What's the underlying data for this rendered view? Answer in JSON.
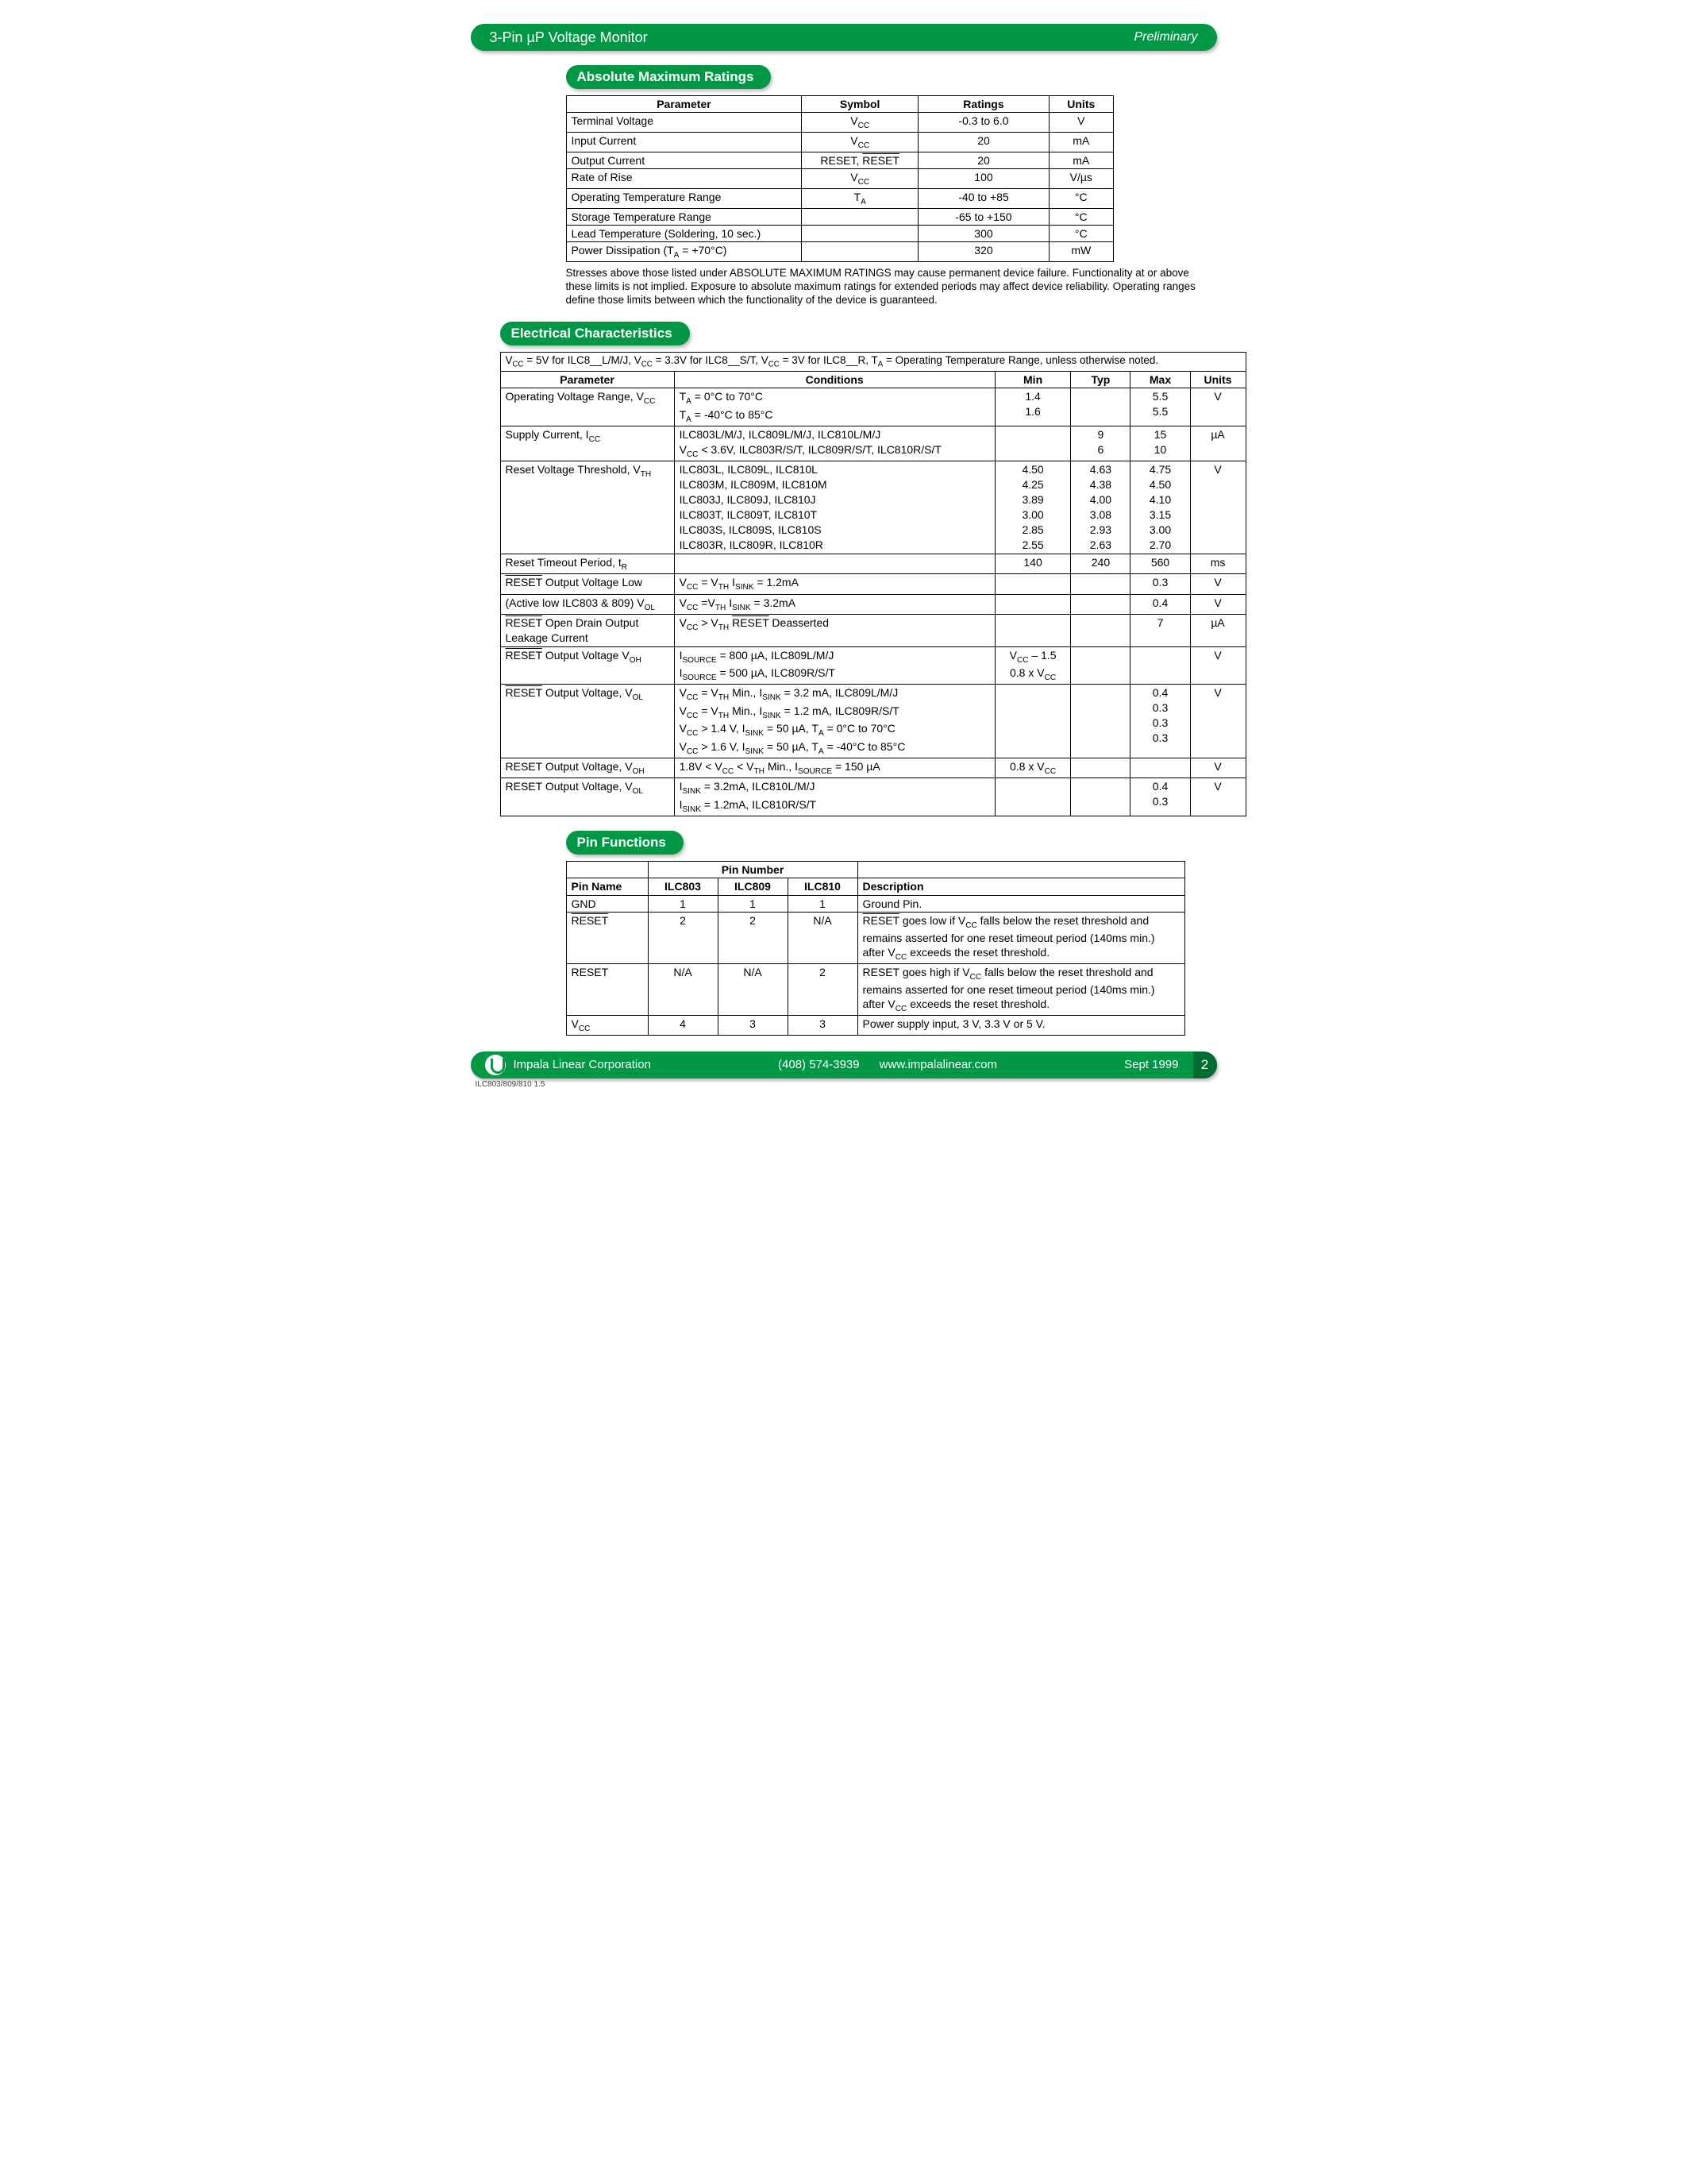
{
  "colors": {
    "brand": "#009844",
    "brand_dark": "#006d30",
    "shadow": "#bdbdbd",
    "text": "#000000",
    "bg": "#ffffff"
  },
  "header": {
    "title": "3-Pin µP Voltage Monitor",
    "right": "Preliminary"
  },
  "sections": {
    "amr": "Absolute Maximum Ratings",
    "ec": "Electrical Characteristics",
    "pf": "Pin Functions"
  },
  "amr": {
    "headers": [
      "Parameter",
      "Symbol",
      "Ratings",
      "Units"
    ],
    "rows": [
      {
        "p": "Terminal Voltage",
        "s": "V_CC",
        "r": "-0.3 to 6.0",
        "u": "V"
      },
      {
        "p": "Input Current",
        "s": "V_CC",
        "r": "20",
        "u": "mA"
      },
      {
        "p": "Output Current",
        "s": "RESET_COMBO",
        "r": "20",
        "u": "mA"
      },
      {
        "p": "Rate of Rise",
        "s": "V_CC",
        "r": "100",
        "u": "V/µs"
      },
      {
        "p": "Operating Temperature Range",
        "s": "T_A",
        "r": "-40 to +85",
        "u": "°C"
      },
      {
        "p": "Storage Temperature Range",
        "s": "",
        "r": "-65 to +150",
        "u": "°C"
      },
      {
        "p": "Lead Temperature (Soldering, 10 sec.)",
        "s": "",
        "r": "300",
        "u": "°C"
      },
      {
        "p": "Power Dissipation (T_A = +70°C)",
        "s": "",
        "r": "320",
        "u": "mW"
      }
    ],
    "note": "Stresses above those listed under ABSOLUTE MAXIMUM RATINGS may cause permanent device failure. Functionality at or above these limits is not implied. Exposure to absolute maximum ratings for extended periods may affect device reliability. Operating ranges define those limits between which the functionality of the device is guaranteed."
  },
  "ec": {
    "cond_header": "V_CC = 5V for ILC8__L/M/J, V_CC = 3.3V for ILC8__S/T, V_CC = 3V for ILC8__R, T_A = Operating Temperature Range, unless otherwise noted.",
    "headers": [
      "Parameter",
      "Conditions",
      "Min",
      "Typ",
      "Max",
      "Units"
    ],
    "rows": [
      {
        "p": "Operating Voltage Range, V_CC",
        "c": [
          "T_A = 0°C to 70°C",
          "T_A = -40°C to 85°C"
        ],
        "min": [
          "1.4",
          "1.6"
        ],
        "typ": [
          "",
          ""
        ],
        "max": [
          "5.5",
          "5.5"
        ],
        "u": "V"
      },
      {
        "p": "Supply Current, I_CC",
        "c": [
          "ILC803L/M/J, ILC809L/M/J, ILC810L/M/J",
          "V_CC < 3.6V, ILC803R/S/T, ILC809R/S/T, ILC810R/S/T"
        ],
        "min": [
          "",
          ""
        ],
        "typ": [
          "9",
          "6"
        ],
        "max": [
          "15",
          "10"
        ],
        "u": "µA"
      },
      {
        "p": "Reset Voltage Threshold, V_TH",
        "c": [
          "ILC803L, ILC809L, ILC810L",
          "ILC803M, ILC809M, ILC810M",
          "ILC803J, ILC809J, ILC810J",
          "ILC803T, ILC809T, ILC810T",
          "ILC803S, ILC809S, ILC810S",
          "ILC803R, ILC809R, ILC810R"
        ],
        "min": [
          "4.50",
          "4.25",
          "3.89",
          "3.00",
          "2.85",
          "2.55"
        ],
        "typ": [
          "4.63",
          "4.38",
          "4.00",
          "3.08",
          "2.93",
          "2.63"
        ],
        "max": [
          "4.75",
          "4.50",
          "4.10",
          "3.15",
          "3.00",
          "2.70"
        ],
        "u": "V"
      },
      {
        "p": "Reset Timeout Period, t_R",
        "c": [
          ""
        ],
        "min": [
          "140"
        ],
        "typ": [
          "240"
        ],
        "max": [
          "560"
        ],
        "u": "ms"
      },
      {
        "p": "RESETBAR Output Voltage Low",
        "c": [
          "V_CC = V_TH     I_SINK = 1.2mA"
        ],
        "min": [
          ""
        ],
        "typ": [
          ""
        ],
        "max": [
          "0.3"
        ],
        "u": "V"
      },
      {
        "p": "(Active low ILC803 & 809) V_OL",
        "c": [
          "V_CC =V_TH     I_SINK = 3.2mA"
        ],
        "min": [
          ""
        ],
        "typ": [
          ""
        ],
        "max": [
          "0.4"
        ],
        "u": "V"
      },
      {
        "p": "RESETBAR Open Drain Output Leakage Current",
        "c": [
          "V_CC > V_TH RESETBAR Deasserted"
        ],
        "min": [
          ""
        ],
        "typ": [
          ""
        ],
        "max": [
          "7"
        ],
        "u": "µA"
      },
      {
        "p": "RESETBAR Output Voltage V_OH",
        "c": [
          "I_SOURCE = 800 µA, ILC809L/M/J",
          "I_SOURCE = 500 µA, ILC809R/S/T"
        ],
        "min": [
          "V_CC – 1.5",
          "0.8 x V_CC"
        ],
        "typ": [
          "",
          ""
        ],
        "max": [
          "",
          ""
        ],
        "u": "V"
      },
      {
        "p": "RESETBAR Output Voltage, V_OL",
        "c": [
          "V_CC = V_TH Min., I_SINK = 3.2 mA, ILC809L/M/J",
          "V_CC = V_TH Min., I_SINK = 1.2 mA, ILC809R/S/T",
          "V_CC > 1.4 V, I_SINK = 50 µA, T_A = 0°C to 70°C",
          "V_CC > 1.6 V, I_SINK = 50 µA, T_A = -40°C to 85°C"
        ],
        "min": [
          "",
          "",
          "",
          ""
        ],
        "typ": [
          "",
          "",
          "",
          ""
        ],
        "max": [
          "0.4",
          "0.3",
          "0.3",
          "0.3"
        ],
        "u": "V"
      },
      {
        "p": "RESET Output Voltage, V_OH",
        "c": [
          "1.8V < V_CC < V_TH Min., I_SOURCE = 150 µA"
        ],
        "min": [
          "0.8 x V_CC"
        ],
        "typ": [
          ""
        ],
        "max": [
          ""
        ],
        "u": "V"
      },
      {
        "p": "RESET Output Voltage, V_OL",
        "c": [
          "I_SINK = 3.2mA, ILC810L/M/J",
          "I_SINK = 1.2mA, ILC810R/S/T"
        ],
        "min": [
          "",
          ""
        ],
        "typ": [
          "",
          ""
        ],
        "max": [
          "0.4",
          "0.3"
        ],
        "u": "V"
      }
    ]
  },
  "pf": {
    "group_header": "Pin Number",
    "headers": [
      "Pin Name",
      "ILC803",
      "ILC809",
      "ILC810",
      "Description"
    ],
    "rows": [
      {
        "n": "GND",
        "a": "1",
        "b": "1",
        "c": "1",
        "d": "Ground Pin."
      },
      {
        "n": "RESETBAR",
        "a": "2",
        "b": "2",
        "c": "N/A",
        "d": "RESETBAR goes low if V_CC falls below the reset threshold and remains asserted for one reset timeout period (140ms min.) after V_CC exceeds the reset threshold."
      },
      {
        "n": "RESET",
        "a": "N/A",
        "b": "N/A",
        "c": "2",
        "d": "RESET goes high if V_CC falls below the reset threshold and remains asserted for one reset timeout period (140ms min.) after V_CC exceeds the reset threshold."
      },
      {
        "n": "V_CC",
        "a": "4",
        "b": "3",
        "c": "3",
        "d": "Power supply input, 3 V, 3.3 V or 5 V."
      }
    ]
  },
  "footer": {
    "company": "Impala Linear Corporation",
    "phone": "(408) 574-3939",
    "url": "www.impalalinear.com",
    "date": "Sept 1999",
    "page": "2",
    "docid": "ILC803/809/810 1.5"
  }
}
